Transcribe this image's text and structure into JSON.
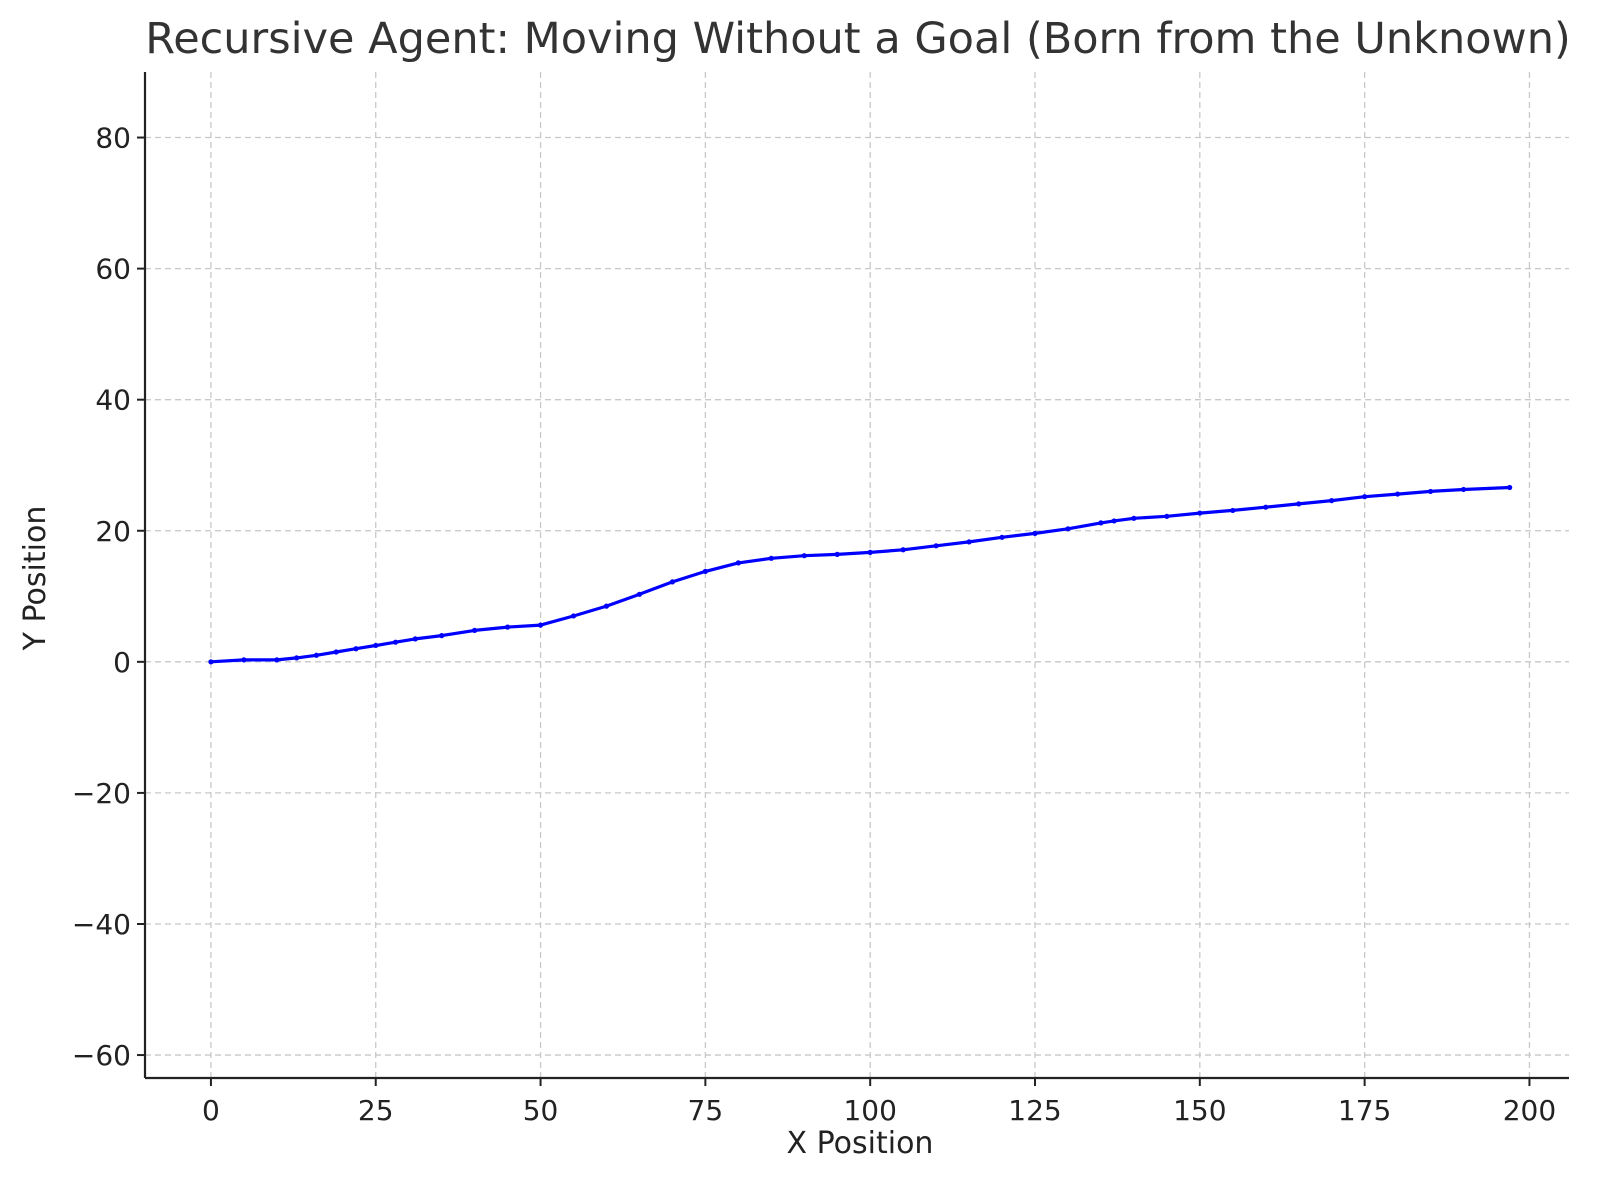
{
  "chart_data": {
    "type": "line",
    "title": "Recursive Agent: Moving Without a Goal (Born from the Unknown)",
    "xlabel": "X Position",
    "ylabel": "Y Position",
    "xlim": [
      -10,
      206
    ],
    "ylim": [
      -63.5,
      90
    ],
    "xticks": [
      0,
      25,
      50,
      75,
      100,
      125,
      150,
      175,
      200
    ],
    "xtick_labels": [
      "0",
      "25",
      "50",
      "75",
      "100",
      "125",
      "150",
      "175",
      "200"
    ],
    "yticks": [
      -60,
      -40,
      -20,
      0,
      20,
      40,
      60,
      80
    ],
    "ytick_labels": [
      "−60",
      "−40",
      "−20",
      "0",
      "20",
      "40",
      "60",
      "80"
    ],
    "grid": true,
    "series": [
      {
        "color": "#0000ff",
        "marker": "dot",
        "x": [
          0,
          5,
          10,
          13,
          16,
          19,
          22,
          25,
          28,
          31,
          35,
          40,
          45,
          50,
          55,
          60,
          65,
          70,
          75,
          80,
          85,
          90,
          95,
          100,
          105,
          110,
          115,
          120,
          125,
          130,
          135,
          137,
          140,
          145,
          150,
          155,
          160,
          165,
          170,
          175,
          180,
          185,
          190,
          197
        ],
        "y": [
          0,
          0.3,
          0.3,
          0.6,
          1.0,
          1.5,
          2.0,
          2.5,
          3.0,
          3.5,
          4.0,
          4.8,
          5.3,
          5.6,
          7.0,
          8.5,
          10.3,
          12.2,
          13.8,
          15.1,
          15.8,
          16.2,
          16.4,
          16.7,
          17.1,
          17.7,
          18.3,
          19.0,
          19.6,
          20.3,
          21.2,
          21.5,
          21.9,
          22.2,
          22.7,
          23.1,
          23.6,
          24.1,
          24.6,
          25.2,
          25.6,
          26.0,
          26.3,
          26.6
        ]
      }
    ]
  },
  "colors": {
    "line": "#0000ff",
    "grid": "#c8c8c8",
    "axis": "#222222",
    "title": "#333333"
  }
}
